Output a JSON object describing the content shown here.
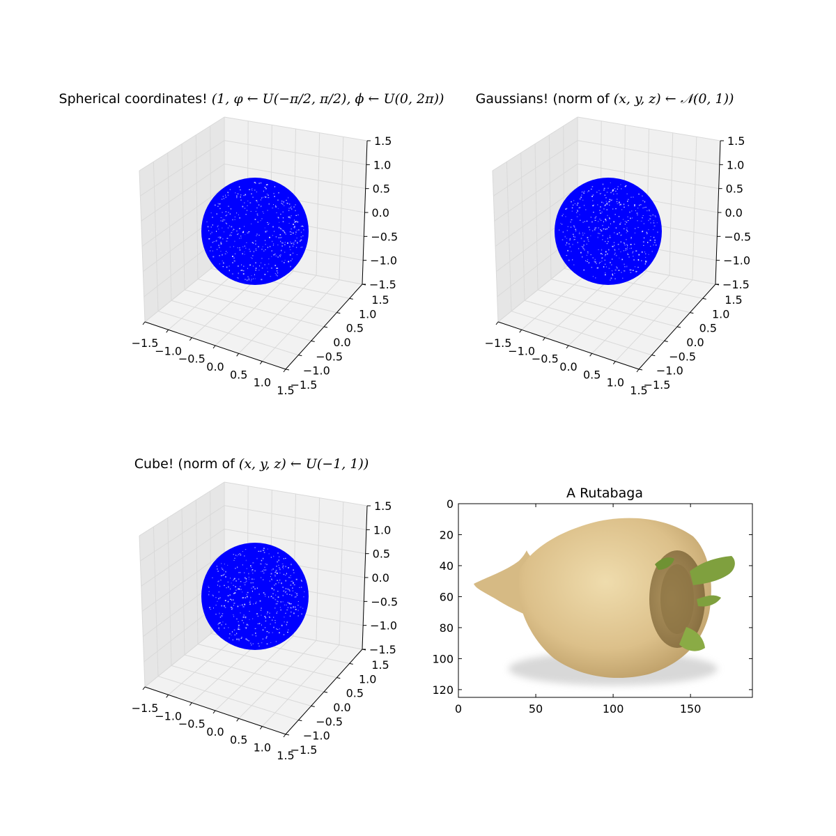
{
  "figure": {
    "subplots": [
      {
        "title_text": "Spherical coordinates! ",
        "title_math": "(1, φ ← U(−π/2, π/2), ϕ ← U(0, 2π))"
      },
      {
        "title_text": "Gaussians! (norm of ",
        "title_math": "(x, y, z) ← 𝒩(0, 1))"
      },
      {
        "title_text": "Cube! (norm of ",
        "title_math": "(x, y, z) ← U(−1, 1))"
      },
      {
        "title_text": "A Rutabaga",
        "title_math": ""
      }
    ]
  },
  "chart_data": [
    {
      "type": "scatter",
      "projection": "3d",
      "title": "Spherical coordinates! (1, φ ← U(−π/2, π/2), ϕ ← U(0, 2π))",
      "description_of_points": "points on unit sphere",
      "marker_color": "#0000ff",
      "xlim": [
        -1.5,
        1.5
      ],
      "ylim": [
        -1.5,
        1.5
      ],
      "zlim": [
        -1.5,
        1.5
      ],
      "x_ticks": [
        "−1.5",
        "−1.0",
        "−0.5",
        "0.0",
        "0.5",
        "1.0",
        "1.5"
      ],
      "y_ticks": [
        "−1.5",
        "−1.0",
        "−0.5",
        "0.0",
        "0.5",
        "1.0",
        "1.5"
      ],
      "z_ticks": [
        "−1.5",
        "−1.0",
        "−0.5",
        "0.0",
        "0.5",
        "1.0",
        "1.5"
      ],
      "grid": true
    },
    {
      "type": "scatter",
      "projection": "3d",
      "title": "Gaussians! (norm of (x, y, z) ← 𝒩(0, 1))",
      "marker_color": "#0000ff",
      "xlim": [
        -1.5,
        1.5
      ],
      "ylim": [
        -1.5,
        1.5
      ],
      "zlim": [
        -1.5,
        1.5
      ],
      "x_ticks": [
        "−1.5",
        "−1.0",
        "−0.5",
        "0.0",
        "0.5",
        "1.0",
        "1.5"
      ],
      "y_ticks": [
        "−1.5",
        "−1.0",
        "−0.5",
        "0.0",
        "0.5",
        "1.0",
        "1.5"
      ],
      "z_ticks": [
        "−1.5",
        "−1.0",
        "−0.5",
        "0.0",
        "0.5",
        "1.0",
        "1.5"
      ],
      "grid": true
    },
    {
      "type": "scatter",
      "projection": "3d",
      "title": "Cube! (norm of (x, y, z) ← U(−1, 1))",
      "marker_color": "#0000ff",
      "xlim": [
        -1.5,
        1.5
      ],
      "ylim": [
        -1.5,
        1.5
      ],
      "zlim": [
        -1.5,
        1.5
      ],
      "x_ticks": [
        "−1.5",
        "−1.0",
        "−0.5",
        "0.0",
        "0.5",
        "1.0",
        "1.5"
      ],
      "y_ticks": [
        "−1.5",
        "−1.0",
        "−0.5",
        "0.0",
        "0.5",
        "1.0",
        "1.5"
      ],
      "z_ticks": [
        "−1.5",
        "−1.0",
        "−0.5",
        "0.0",
        "0.5",
        "1.0",
        "1.5"
      ],
      "grid": true
    },
    {
      "type": "image",
      "title": "A Rutabaga",
      "xlim": [
        0,
        190
      ],
      "ylim": [
        125,
        0
      ],
      "x_ticks": [
        "0",
        "50",
        "100",
        "150"
      ],
      "y_ticks": [
        "0",
        "20",
        "40",
        "60",
        "80",
        "100",
        "120"
      ],
      "image_colors": {
        "body": "#e0c590",
        "shadow": "#b89a66",
        "leaves": "#7a9a3a"
      }
    }
  ]
}
